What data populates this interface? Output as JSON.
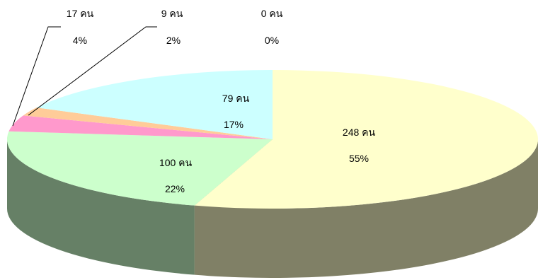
{
  "chart_data": {
    "type": "pie",
    "style": "3d",
    "slices": [
      {
        "count_label": "248 คน",
        "percent_label": "55%",
        "value": 248,
        "percent": 55,
        "color": "#FFFFCC",
        "side_color": "#808066"
      },
      {
        "count_label": "100 คน",
        "percent_label": "22%",
        "value": 100,
        "percent": 22,
        "color": "#CCFFCC",
        "side_color": "#668066"
      },
      {
        "count_label": "17 คน",
        "percent_label": "4%",
        "value": 17,
        "percent": 4,
        "color": "#FF99CC",
        "side_color": "#804D66"
      },
      {
        "count_label": "9 คน",
        "percent_label": "2%",
        "value": 9,
        "percent": 2,
        "color": "#FFCC99",
        "side_color": "#80664D"
      },
      {
        "count_label": "0 คน",
        "percent_label": "0%",
        "value": 0,
        "percent": 0,
        "color": "#CCCCFF",
        "side_color": "#666680"
      },
      {
        "count_label": "79 คน",
        "percent_label": "17%",
        "value": 79,
        "percent": 17,
        "color": "#CCFFFF",
        "side_color": "#668080"
      }
    ]
  }
}
